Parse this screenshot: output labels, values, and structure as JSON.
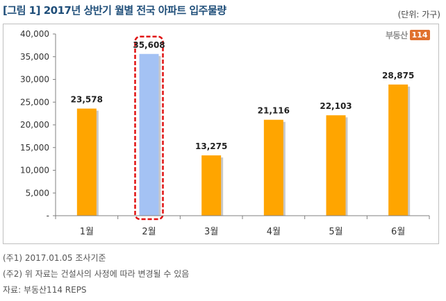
{
  "header": {
    "title": "[그림 1] 2017년 상반기 월별 전국 아파트 입주물량",
    "unit": "(단위: 가구)"
  },
  "brand": {
    "text": "부동산",
    "number": "114"
  },
  "chart_data": {
    "type": "bar",
    "title": "[그림 1] 2017년 상반기 월별 전국 아파트 입주물량",
    "xlabel": "",
    "ylabel": "",
    "categories": [
      "1월",
      "2월",
      "3월",
      "4월",
      "5월",
      "6월"
    ],
    "values": [
      23578,
      35608,
      13275,
      21116,
      22103,
      28875
    ],
    "value_labels": [
      "23,578",
      "35,608",
      "13,275",
      "21,116",
      "22,103",
      "28,875"
    ],
    "ylim": [
      0,
      40000
    ],
    "yticks": [
      0,
      5000,
      10000,
      15000,
      20000,
      25000,
      30000,
      35000,
      40000
    ],
    "ytick_labels": [
      "-",
      "5,000",
      "10,000",
      "15,000",
      "20,000",
      "25,000",
      "30,000",
      "35,000",
      "40,000"
    ],
    "grid": false,
    "highlight_index": 1,
    "colors": {
      "bar": "#ffa500",
      "highlight": "#a4c2f4",
      "highlight_border": "#e01010",
      "axis": "#7f7f7f"
    }
  },
  "notes": [
    "(주1) 2017.01.05  조사기준",
    "(주2) 위 자료는 건설사의 사정에 따라 변경될 수 있음",
    "자료: 부동산114  REPS"
  ]
}
